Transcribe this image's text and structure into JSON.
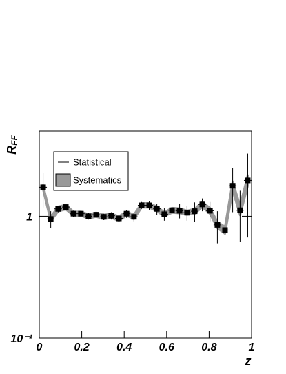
{
  "chart_data": {
    "type": "errorbar",
    "y_label": "R",
    "y_label_sub": "FF",
    "x_label": "z",
    "log_y": true,
    "xlim": [
      0,
      1
    ],
    "xticks": [
      0,
      0.2,
      0.4,
      0.6,
      0.8,
      1
    ],
    "ylim": [
      0.1,
      5
    ],
    "yticks": [
      {
        "value": 0.1,
        "label": "10⁻¹"
      },
      1
    ],
    "x": [
      0.018,
      0.054,
      0.089,
      0.125,
      0.161,
      0.196,
      0.232,
      0.268,
      0.304,
      0.339,
      0.375,
      0.411,
      0.446,
      0.482,
      0.518,
      0.554,
      0.589,
      0.625,
      0.661,
      0.696,
      0.732,
      0.768,
      0.804,
      0.839,
      0.875,
      0.911,
      0.946,
      0.982
    ],
    "series": [
      {
        "name": "Statistical",
        "sys_name": "Systematics",
        "color": "#000000",
        "sys_color": "#999999",
        "values": [
          1.73,
          0.95,
          1.15,
          1.19,
          1.05,
          1.05,
          1.0,
          1.03,
          0.99,
          1.01,
          0.96,
          1.05,
          0.99,
          1.23,
          1.23,
          1.15,
          1.04,
          1.12,
          1.11,
          1.07,
          1.1,
          1.25,
          1.11,
          0.85,
          0.77,
          1.78,
          1.12,
          1.97
        ],
        "errors": [
          0.55,
          0.15,
          0.07,
          0.05,
          0.06,
          0.05,
          0.06,
          0.06,
          0.06,
          0.07,
          0.07,
          0.08,
          0.08,
          0.08,
          0.1,
          0.12,
          0.12,
          0.15,
          0.15,
          0.15,
          0.2,
          0.15,
          0.2,
          0.25,
          0.35,
          0.7,
          0.5,
          1.3
        ],
        "sys_errors": [
          0.07,
          0.04,
          0.05,
          0.05,
          0.04,
          0.04,
          0.04,
          0.04,
          0.04,
          0.04,
          0.04,
          0.04,
          0.04,
          0.05,
          0.05,
          0.05,
          0.04,
          0.05,
          0.05,
          0.04,
          0.05,
          0.06,
          0.06,
          0.05,
          0.05,
          0.15,
          0.1,
          0.2
        ]
      }
    ]
  }
}
